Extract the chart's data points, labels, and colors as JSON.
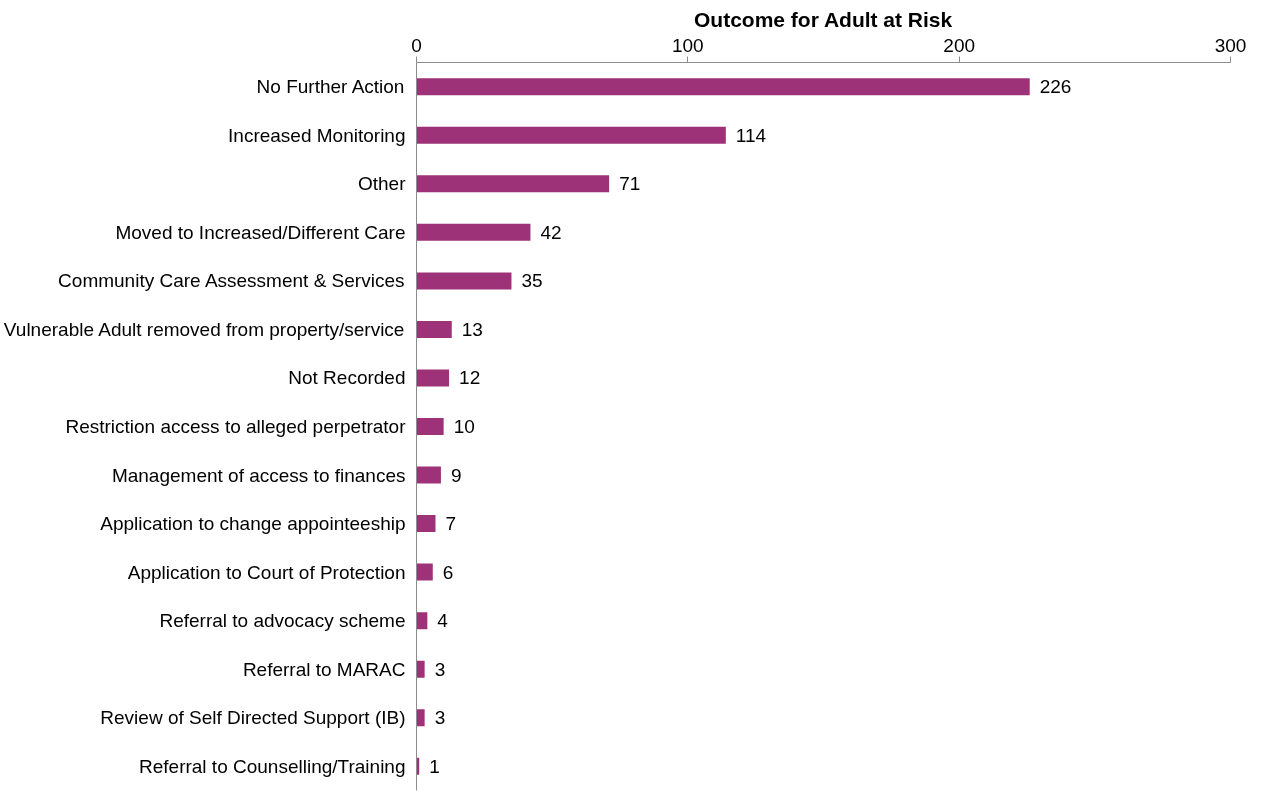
{
  "chart_data": {
    "type": "bar",
    "orientation": "horizontal",
    "title": "Outcome for Adult at Risk",
    "categories": [
      "No Further Action",
      "Increased Monitoring",
      "Other",
      "Moved to Increased/Different Care",
      "Community Care Assessment & Services",
      "Vulnerable Adult removed from property/service",
      "Not Recorded",
      "Restriction access to alleged perpetrator",
      "Management of access to finances",
      "Application to change appointeeship",
      "Application to Court of Protection",
      "Referral to advocacy scheme",
      "Referral to MARAC",
      "Review of Self Directed Support (IB)",
      "Referral to Counselling/Training"
    ],
    "values": [
      226,
      114,
      71,
      42,
      35,
      13,
      12,
      10,
      9,
      7,
      6,
      4,
      3,
      3,
      1
    ],
    "color": "#9e3278",
    "xlim": [
      0,
      300
    ],
    "xticks": [
      0,
      100,
      200,
      300
    ],
    "data_labels": true,
    "grid": false
  }
}
